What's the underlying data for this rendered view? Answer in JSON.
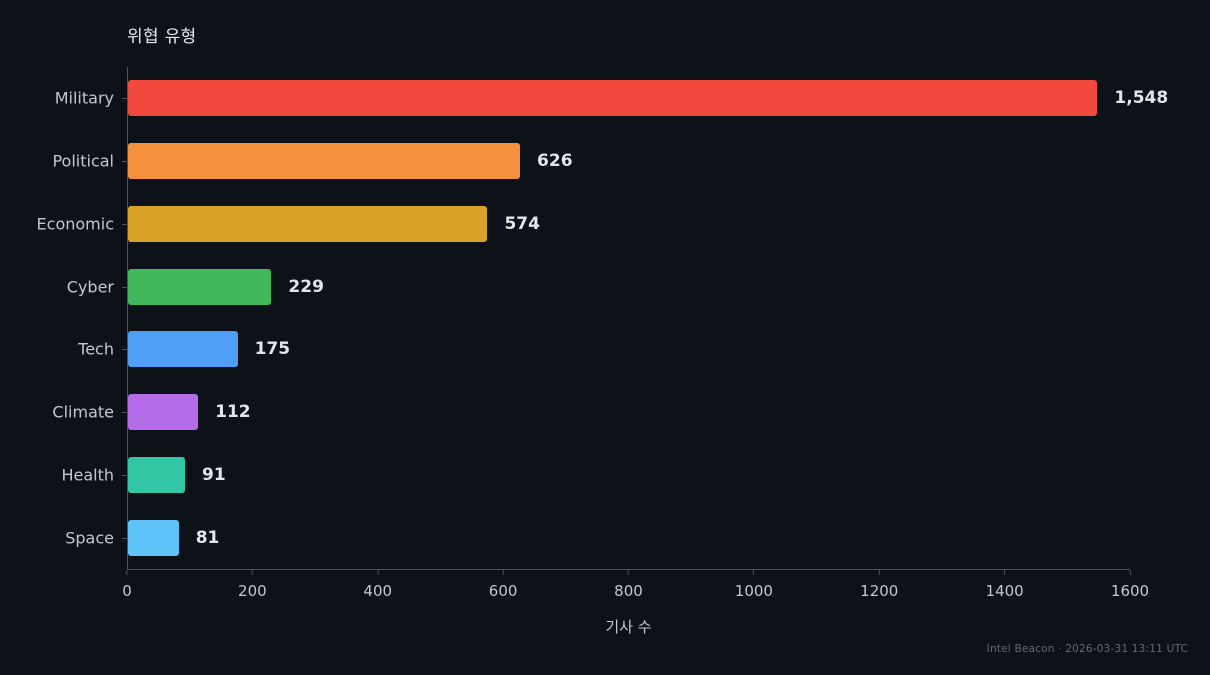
{
  "chart_data": {
    "type": "bar",
    "orientation": "horizontal",
    "title": "위협 유형",
    "xlabel": "기사 수",
    "categories": [
      "Military",
      "Political",
      "Economic",
      "Cyber",
      "Tech",
      "Climate",
      "Health",
      "Space"
    ],
    "values": [
      1548,
      626,
      574,
      229,
      175,
      112,
      91,
      81
    ],
    "value_labels": [
      "1,548",
      "626",
      "574",
      "229",
      "175",
      "112",
      "91",
      "81"
    ],
    "bar_colors": [
      "#f2493f",
      "#f6923e",
      "#d9a326",
      "#41b85c",
      "#4f9ff7",
      "#b46ce8",
      "#31c7a4",
      "#5ec3f8"
    ],
    "xlim": [
      0,
      1600
    ],
    "xticks": [
      0,
      200,
      400,
      600,
      800,
      1000,
      1200,
      1400,
      1600
    ],
    "grid": false,
    "legend": false
  },
  "footer": {
    "text": "Intel Beacon · 2026-03-31 13:11 UTC"
  },
  "colors": {
    "background": "#0d1118",
    "axis": "#4d525c",
    "title_text": "#e8eaee",
    "tick_text": "#c3c7cf",
    "value_text": "#e2e5ea",
    "footer_text": "#636975"
  }
}
